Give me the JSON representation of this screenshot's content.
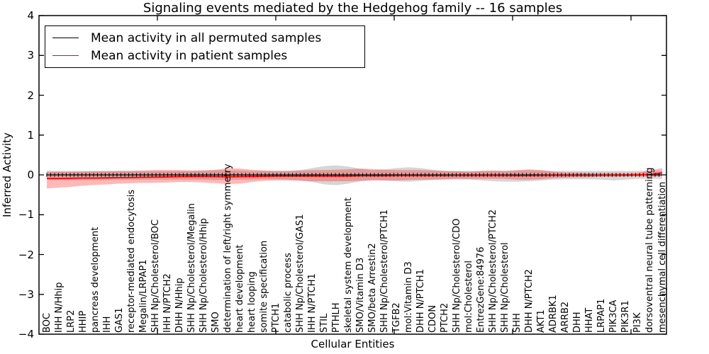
{
  "figure": {
    "title": "Signaling events mediated by the Hedgehog family -- 16 samples",
    "xlabel": "Cellular Entities",
    "ylabel": "Inferred Activity"
  },
  "legend": {
    "entries": [
      {
        "label": "Mean activity in all permuted samples",
        "color": "#000000"
      },
      {
        "label": "Mean activity in patient samples",
        "color": "#ff0000"
      }
    ]
  },
  "chart_data": {
    "type": "line",
    "title": "Signaling events mediated by the Hedgehog family -- 16 samples",
    "xlabel": "Cellular Entities",
    "ylabel": "Inferred Activity",
    "ylim": [
      -4,
      4
    ],
    "yticks": [
      "4",
      "3",
      "2",
      "1",
      "0",
      "−1",
      "−2",
      "−3",
      "−4"
    ],
    "ytick_values": [
      4,
      3,
      2,
      1,
      0,
      -1,
      -2,
      -3,
      -4
    ],
    "grid": false,
    "legend_position": "upper left",
    "categories": [
      "BOC",
      "IHH N/Hhip",
      "LRP2",
      "HHIP",
      "pancreas development",
      "IHH",
      "GAS1",
      "receptor-mediated endocytosis",
      "Megalin/LRPAP1",
      "SHH Np/Cholesterol/BOC",
      "IHH N/PTCH2",
      "DHH N/Hhip",
      "SHH Np/Cholesterol/Megalin",
      "SHH Np/Cholesterol/Hhip",
      "SMO",
      "determination of left/right symmetry",
      "heart development",
      "heart looping",
      "somite specification",
      "PTCH1",
      "catabolic process",
      "SHH Np/Cholesterol/GAS1",
      "IHH N/PTCH1",
      "STIL",
      "PTHLH",
      "skeletal system development",
      "SMO/Vitamin D3",
      "SMO/beta Arrestin2",
      "SHH Np/Cholesterol/PTCH1",
      "TGFB2",
      "mol:Vitamin D3",
      "DHH N/PTCH1",
      "CDON",
      "PTCH2",
      "SHH Np/Cholesterol/CDO",
      "mol:Cholesterol",
      "EntrezGene:84976",
      "SHH Np/Cholesterol/PTCH2",
      "SHH Np/Cholesterol",
      "SHH",
      "DHH N/PTCH2",
      "AKT1",
      "ADRBK1",
      "ARRB2",
      "DHH",
      "HHAT",
      "LRPAP1",
      "PIK3CA",
      "PIK3R1",
      "PI3K",
      "dorsoventral neural tube patterning",
      "mesenchymal cell differentiation"
    ],
    "series": [
      {
        "name": "Mean activity in all permuted samples",
        "color": "#000000",
        "band_color": "rgba(0,0,0,0.16)",
        "values": [
          0,
          0,
          0,
          0,
          0,
          0,
          0,
          0,
          0,
          0,
          0,
          0,
          0,
          0,
          0,
          0,
          0,
          0,
          0,
          0,
          0,
          0,
          0,
          0,
          0,
          0,
          0,
          0,
          0,
          0,
          0,
          0,
          0,
          0,
          0,
          0,
          0,
          0,
          0,
          0,
          0,
          0,
          0,
          0,
          0,
          0,
          0,
          0,
          0,
          0,
          0,
          0
        ],
        "band_upper": [
          0.1,
          0.1,
          0.1,
          0.1,
          0.1,
          0.1,
          0.1,
          0.1,
          0.1,
          0.1,
          0.1,
          0.1,
          0.1,
          0.11,
          0.12,
          0.12,
          0.11,
          0.1,
          0.1,
          0.1,
          0.1,
          0.12,
          0.17,
          0.22,
          0.24,
          0.21,
          0.15,
          0.12,
          0.14,
          0.17,
          0.19,
          0.17,
          0.13,
          0.1,
          0.1,
          0.1,
          0.1,
          0.1,
          0.1,
          0.11,
          0.12,
          0.11,
          0.1,
          0.1,
          0.1,
          0.1,
          0.1,
          0.1,
          0.1,
          0.1,
          0.1,
          0.1
        ],
        "band_lower": [
          -0.12,
          -0.12,
          -0.12,
          -0.12,
          -0.12,
          -0.12,
          -0.12,
          -0.12,
          -0.12,
          -0.12,
          -0.12,
          -0.12,
          -0.12,
          -0.12,
          -0.13,
          -0.13,
          -0.12,
          -0.12,
          -0.11,
          -0.11,
          -0.12,
          -0.14,
          -0.18,
          -0.24,
          -0.26,
          -0.22,
          -0.16,
          -0.13,
          -0.14,
          -0.16,
          -0.17,
          -0.15,
          -0.13,
          -0.12,
          -0.11,
          -0.12,
          -0.14,
          -0.16,
          -0.17,
          -0.17,
          -0.16,
          -0.14,
          -0.12,
          -0.11,
          -0.11,
          -0.11,
          -0.12,
          -0.14,
          -0.12,
          -0.1,
          -0.1,
          -0.1
        ]
      },
      {
        "name": "Mean activity in patient samples",
        "color": "#ff0000",
        "band_color": "rgba(255,0,0,0.28)",
        "values": [
          -0.09,
          -0.09,
          -0.085,
          -0.08,
          -0.08,
          -0.075,
          -0.07,
          -0.065,
          -0.06,
          -0.055,
          -0.05,
          -0.045,
          -0.04,
          -0.04,
          -0.045,
          -0.05,
          -0.045,
          -0.04,
          -0.035,
          -0.03,
          -0.03,
          -0.03,
          -0.03,
          -0.03,
          -0.03,
          -0.03,
          -0.025,
          -0.025,
          -0.025,
          -0.02,
          -0.02,
          -0.02,
          -0.02,
          -0.02,
          -0.015,
          -0.015,
          -0.015,
          -0.015,
          -0.015,
          -0.02,
          -0.02,
          -0.015,
          -0.01,
          -0.01,
          -0.01,
          -0.01,
          -0.005,
          -0.005,
          -0.005,
          0.0,
          0.01,
          0.05
        ],
        "band_upper": [
          0.08,
          0.08,
          0.08,
          0.08,
          0.09,
          0.09,
          0.1,
          0.1,
          0.11,
          0.12,
          0.12,
          0.12,
          0.11,
          0.11,
          0.13,
          0.17,
          0.16,
          0.13,
          0.11,
          0.1,
          0.1,
          0.11,
          0.12,
          0.12,
          0.13,
          0.14,
          0.16,
          0.15,
          0.13,
          0.12,
          0.12,
          0.12,
          0.11,
          0.1,
          0.09,
          0.08,
          0.1,
          0.11,
          0.1,
          0.12,
          0.14,
          0.12,
          0.08,
          0.06,
          0.06,
          0.05,
          0.05,
          0.05,
          0.04,
          0.05,
          0.12,
          0.17
        ],
        "band_lower": [
          -0.34,
          -0.32,
          -0.3,
          -0.27,
          -0.25,
          -0.24,
          -0.22,
          -0.21,
          -0.2,
          -0.2,
          -0.19,
          -0.18,
          -0.18,
          -0.19,
          -0.21,
          -0.23,
          -0.22,
          -0.18,
          -0.15,
          -0.14,
          -0.14,
          -0.15,
          -0.16,
          -0.16,
          -0.16,
          -0.16,
          -0.15,
          -0.14,
          -0.14,
          -0.14,
          -0.13,
          -0.12,
          -0.12,
          -0.11,
          -0.1,
          -0.1,
          -0.1,
          -0.1,
          -0.1,
          -0.12,
          -0.12,
          -0.11,
          -0.08,
          -0.07,
          -0.06,
          -0.06,
          -0.05,
          -0.05,
          -0.04,
          -0.04,
          -0.05,
          -0.03
        ]
      }
    ]
  }
}
